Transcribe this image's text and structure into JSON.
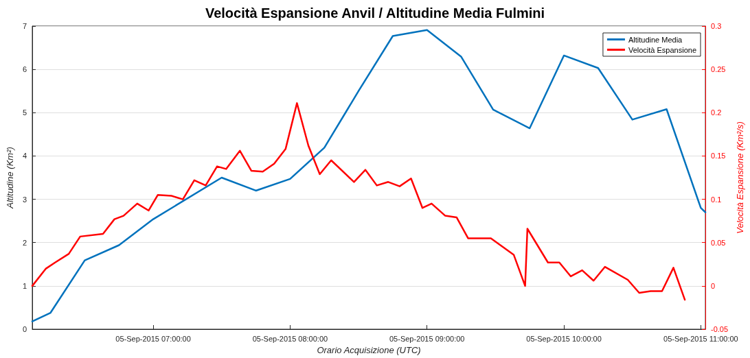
{
  "chart_data": {
    "type": "line",
    "title": "Velocità Espansione Anvil / Altitudine Media Fulmini",
    "xlabel": "Orario Acquisizione (UTC)",
    "ylabel": "Altitudine (Km²)",
    "y2label": "Velocità Espansione (Km²/s)",
    "xlim": [
      "2015-09-05T06:07",
      "2015-09-05T11:02"
    ],
    "xticks": [
      {
        "value": "2015-09-05T07:00",
        "label": "05-Sep-2015 07:00:00"
      },
      {
        "value": "2015-09-05T08:00",
        "label": "05-Sep-2015 08:00:00"
      },
      {
        "value": "2015-09-05T09:00",
        "label": "05-Sep-2015 09:00:00"
      },
      {
        "value": "2015-09-05T10:00",
        "label": "05-Sep-2015 10:00:00"
      },
      {
        "value": "2015-09-05T11:00",
        "label": "05-Sep-2015 11:00:00"
      }
    ],
    "ylim": [
      0,
      7
    ],
    "yticks": [
      0,
      1,
      2,
      3,
      4,
      5,
      6,
      7
    ],
    "y2lim": [
      -0.05,
      0.3
    ],
    "y2ticks": [
      -0.05,
      0,
      0.05,
      0.1,
      0.15,
      0.2,
      0.25,
      0.3
    ],
    "grid": "y",
    "legend": "top right",
    "marker": "none",
    "line_style": "solid",
    "series": [
      {
        "name": "Altitudine Media",
        "color": "#0072bd",
        "x": [
          "2015-09-05T06:07",
          "2015-09-05T06:15",
          "2015-09-05T06:30",
          "2015-09-05T06:45",
          "2015-09-05T07:00",
          "2015-09-05T07:30",
          "2015-09-05T07:45",
          "2015-09-05T08:00",
          "2015-09-05T08:15",
          "2015-09-05T08:30",
          "2015-09-05T08:45",
          "2015-09-05T09:00",
          "2015-09-05T09:15",
          "2015-09-05T09:29",
          "2015-09-05T09:45",
          "2015-09-05T10:00",
          "2015-09-05T10:15",
          "2015-09-05T10:30",
          "2015-09-05T10:45",
          "2015-09-05T11:00",
          "2015-09-05T11:02"
        ],
        "values": [
          0.18,
          0.38,
          1.59,
          1.94,
          2.54,
          3.5,
          3.2,
          3.47,
          4.19,
          5.5,
          6.77,
          6.91,
          6.29,
          5.07,
          4.64,
          6.32,
          6.03,
          4.84,
          5.08,
          2.8,
          2.7
        ]
      },
      {
        "name": "Velocità Espansione",
        "color": "#ff0000",
        "axis": "y2",
        "x": [
          "2015-09-05T06:07",
          "2015-09-05T06:13",
          "2015-09-05T06:17",
          "2015-09-05T06:23",
          "2015-09-05T06:28",
          "2015-09-05T06:38",
          "2015-09-05T06:43",
          "2015-09-05T06:47",
          "2015-09-05T06:53",
          "2015-09-05T06:58",
          "2015-09-05T07:02",
          "2015-09-05T07:08",
          "2015-09-05T07:13",
          "2015-09-05T07:18",
          "2015-09-05T07:23",
          "2015-09-05T07:28",
          "2015-09-05T07:32",
          "2015-09-05T07:38",
          "2015-09-05T07:43",
          "2015-09-05T07:48",
          "2015-09-05T07:53",
          "2015-09-05T07:58",
          "2015-09-05T08:03",
          "2015-09-05T08:08",
          "2015-09-05T08:13",
          "2015-09-05T08:18",
          "2015-09-05T08:28",
          "2015-09-05T08:33",
          "2015-09-05T08:38",
          "2015-09-05T08:43",
          "2015-09-05T08:48",
          "2015-09-05T08:53",
          "2015-09-05T08:58",
          "2015-09-05T09:02",
          "2015-09-05T09:08",
          "2015-09-05T09:13",
          "2015-09-05T09:18",
          "2015-09-05T09:28",
          "2015-09-05T09:38",
          "2015-09-05T09:43",
          "2015-09-05T09:44",
          "2015-09-05T09:53",
          "2015-09-05T09:58",
          "2015-09-05T10:03",
          "2015-09-05T10:08",
          "2015-09-05T10:13",
          "2015-09-05T10:18",
          "2015-09-05T10:28",
          "2015-09-05T10:33",
          "2015-09-05T10:38",
          "2015-09-05T10:43",
          "2015-09-05T10:48",
          "2015-09-05T10:53"
        ],
        "values": [
          0.0,
          0.02,
          0.027,
          0.037,
          0.057,
          0.06,
          0.077,
          0.081,
          0.095,
          0.087,
          0.105,
          0.104,
          0.1,
          0.122,
          0.116,
          0.138,
          0.135,
          0.156,
          0.133,
          0.132,
          0.141,
          0.158,
          0.211,
          0.162,
          0.129,
          0.145,
          0.12,
          0.134,
          0.116,
          0.12,
          0.115,
          0.124,
          0.09,
          0.095,
          0.081,
          0.079,
          0.055,
          0.055,
          0.036,
          0.0,
          0.066,
          0.027,
          0.027,
          0.011,
          0.018,
          0.006,
          0.022,
          0.007,
          -0.008,
          -0.006,
          -0.006,
          0.021,
          -0.016
        ]
      }
    ]
  }
}
